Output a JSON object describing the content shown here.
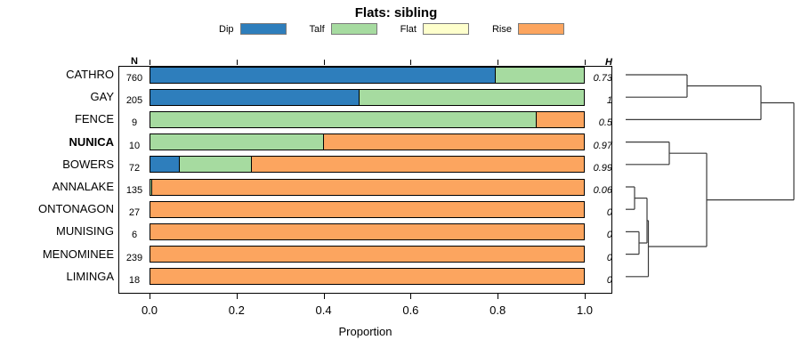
{
  "title": "Flats: sibling",
  "legend": {
    "items": [
      {
        "label": "Dip",
        "color": "#2e7ebc"
      },
      {
        "label": "Talf",
        "color": "#a6dba0"
      },
      {
        "label": "Flat",
        "color": "#feffcc"
      },
      {
        "label": "Rise",
        "color": "#fca55f"
      }
    ]
  },
  "columns": {
    "n_header": "N",
    "h_header": "H"
  },
  "axis": {
    "xlabel": "Proportion",
    "xticks": [
      "0.0",
      "0.2",
      "0.4",
      "0.6",
      "0.8",
      "1.0"
    ],
    "xtick_values": [
      0,
      0.2,
      0.4,
      0.6,
      0.8,
      1.0
    ]
  },
  "chart_data": {
    "type": "bar",
    "orientation": "horizontal",
    "stacked": true,
    "title": "Flats: sibling",
    "xlabel": "Proportion",
    "xlim": [
      0,
      1
    ],
    "categories": [
      "CATHRO",
      "GAY",
      "FENCE",
      "NUNICA",
      "BOWERS",
      "ANNALAKE",
      "ONTONAGON",
      "MUNISING",
      "MENOMINEE",
      "LIMINGA"
    ],
    "bold_category": "NUNICA",
    "series": [
      {
        "name": "Dip",
        "color": "#2e7ebc",
        "values": [
          0.795,
          0.483,
          0,
          0,
          0.069,
          0,
          0,
          0,
          0,
          0
        ]
      },
      {
        "name": "Talf",
        "color": "#a6dba0",
        "values": [
          0.205,
          0.517,
          0.889,
          0.4,
          0.167,
          0.007,
          0,
          0,
          0,
          0
        ]
      },
      {
        "name": "Flat",
        "color": "#feffcc",
        "values": [
          0,
          0,
          0,
          0,
          0,
          0,
          0,
          0,
          0,
          0
        ]
      },
      {
        "name": "Rise",
        "color": "#fca55f",
        "values": [
          0,
          0,
          0.111,
          0.6,
          0.764,
          0.993,
          1,
          1,
          1,
          1
        ]
      }
    ],
    "N": [
      "760",
      "205",
      "9",
      "10",
      "72",
      "135",
      "27",
      "6",
      "239",
      "18"
    ],
    "H": [
      "0.73",
      "1",
      "0.5",
      "0.97",
      "0.99",
      "0.06",
      "0",
      "0",
      "0",
      "0"
    ],
    "legend_position": "top",
    "grid": false,
    "dendrogram": {
      "description": "hierarchical clustering tree at right; pixel segments x1,y1,x2,y2",
      "structure": "(((CATHRO,GAY),FENCE),((NUNICA,BOWERS),(((ANNALAKE,ONTONAGON),(MUNISING,MENOMINEE)),LIMINGA)))",
      "segments": [
        [
          703,
          84.0,
          772,
          84.0
        ],
        [
          703,
          109.2,
          772,
          109.2
        ],
        [
          772,
          84.0,
          772,
          109.2
        ],
        [
          772,
          96.5,
          855,
          96.5
        ],
        [
          703,
          134.4,
          855,
          134.4
        ],
        [
          855,
          96.5,
          855,
          134.4
        ],
        [
          855,
          115.5,
          892,
          115.5
        ],
        [
          703,
          159.6,
          752,
          159.6
        ],
        [
          703,
          184.8,
          752,
          184.8
        ],
        [
          752,
          159.6,
          752,
          184.8
        ],
        [
          752,
          172.2,
          794,
          172.2
        ],
        [
          703,
          210.0,
          713,
          210.0
        ],
        [
          703,
          235.2,
          713,
          235.2
        ],
        [
          713,
          210.0,
          713,
          235.2
        ],
        [
          713,
          222.6,
          727,
          222.6
        ],
        [
          703,
          260.4,
          718,
          260.4
        ],
        [
          703,
          285.6,
          718,
          285.6
        ],
        [
          718,
          260.4,
          718,
          285.6
        ],
        [
          718,
          273.0,
          727,
          273.0
        ],
        [
          727,
          222.6,
          727,
          273.0
        ],
        [
          727,
          247.8,
          728.5,
          247.8
        ],
        [
          703,
          310.8,
          728.5,
          310.8
        ],
        [
          728.5,
          247.8,
          728.5,
          310.8
        ],
        [
          728.5,
          277.0,
          794,
          277.0
        ],
        [
          794,
          172.2,
          794,
          277.0
        ],
        [
          794,
          224.6,
          892,
          224.6
        ],
        [
          892,
          115.5,
          892,
          224.6
        ]
      ]
    }
  }
}
